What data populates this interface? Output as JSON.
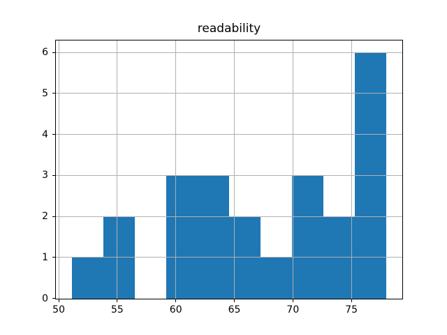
{
  "chart_data": {
    "type": "bar",
    "chart_kind": "histogram",
    "title": "readability",
    "xlabel": "",
    "ylabel": "",
    "bin_edges": [
      51.1,
      53.79,
      56.48,
      59.17,
      61.86,
      64.55,
      67.24,
      69.93,
      72.62,
      75.31,
      78.0
    ],
    "counts": [
      1,
      2,
      0,
      3,
      3,
      2,
      1,
      3,
      2,
      6
    ],
    "xlim": [
      49.755,
      79.345
    ],
    "ylim": [
      0,
      6.3
    ],
    "x_ticks": [
      50,
      55,
      60,
      65,
      70,
      75
    ],
    "x_tick_labels": [
      "50",
      "55",
      "60",
      "65",
      "70",
      "75"
    ],
    "y_ticks": [
      0,
      1,
      2,
      3,
      4,
      5,
      6
    ],
    "y_tick_labels": [
      "0",
      "1",
      "2",
      "3",
      "4",
      "5",
      "6"
    ],
    "grid": true,
    "legend": null,
    "colors": {
      "bar": "#1f77b4",
      "grid": "#b0b0b0",
      "spine": "#000000",
      "background": "#ffffff",
      "text": "#000000"
    }
  }
}
